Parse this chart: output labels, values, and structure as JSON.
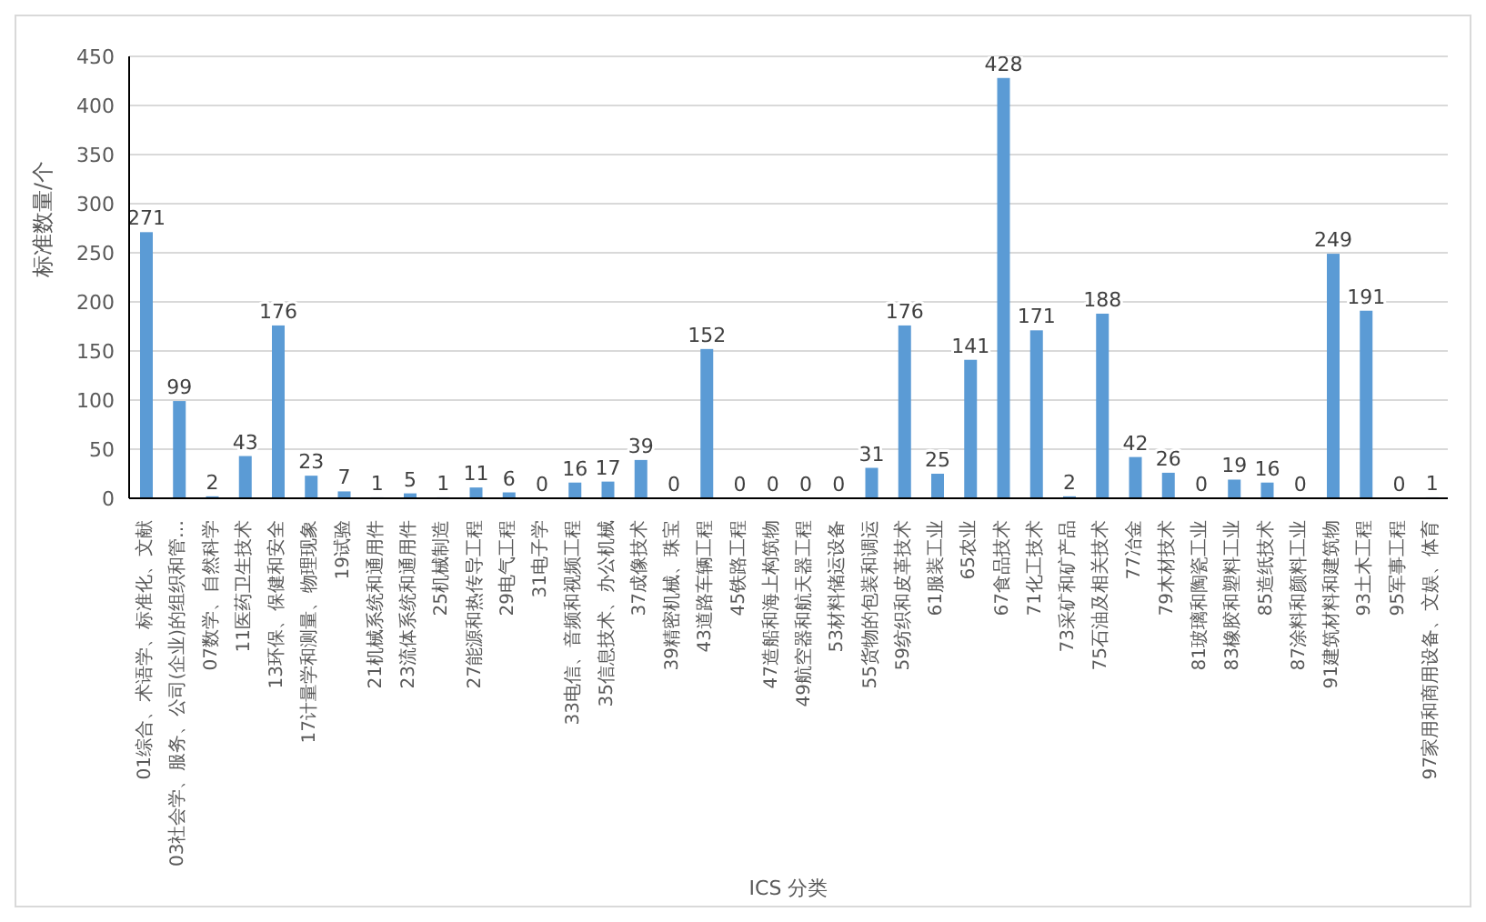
{
  "chart_data": {
    "type": "bar",
    "xlabel": "ICS 分类",
    "ylabel": "标准数量/个",
    "categories": [
      "01综合、术语学、标准化、文献",
      "03社会学、服务、公司(企业)的组织和管…",
      "07数学、自然科学",
      "11医药卫生技术",
      "13环保、保健和安全",
      "17计量学和测量、物理现象",
      "19试验",
      "21机械系统和通用件",
      "23流体系统和通用件",
      "25机械制造",
      "27能源和热传导工程",
      "29电气工程",
      "31电子学",
      "33电信、音频和视频工程",
      "35信息技术、办公机械",
      "37成像技术",
      "39精密机械、珠宝",
      "43道路车辆工程",
      "45铁路工程",
      "47造船和海上构筑物",
      "49航空器和航天器工程",
      "53材料储运设备",
      "55货物的包装和调运",
      "59纺织和皮革技术",
      "61服装工业",
      "65农业",
      "67食品技术",
      "71化工技术",
      "73采矿和矿产品",
      "75石油及相关技术",
      "77冶金",
      "79木材技术",
      "81玻璃和陶瓷工业",
      "83橡胶和塑料工业",
      "85造纸技术",
      "87涂料和颜料工业",
      "91建筑材料和建筑物",
      "93土木工程",
      "95军事工程",
      "97家用和商用设备、文娱、体育"
    ],
    "values": [
      271,
      99,
      2,
      43,
      176,
      23,
      7,
      1,
      5,
      1,
      11,
      6,
      0,
      16,
      17,
      39,
      0,
      152,
      0,
      0,
      0,
      0,
      31,
      176,
      25,
      141,
      428,
      171,
      2,
      188,
      42,
      26,
      0,
      19,
      16,
      0,
      249,
      191,
      0,
      1
    ],
    "color": "#5b9bd5",
    "ylim": [
      0,
      450
    ],
    "yticks": [
      0,
      50,
      100,
      150,
      200,
      250,
      300,
      350,
      400,
      450
    ],
    "grid": "y",
    "data_labels": true
  }
}
